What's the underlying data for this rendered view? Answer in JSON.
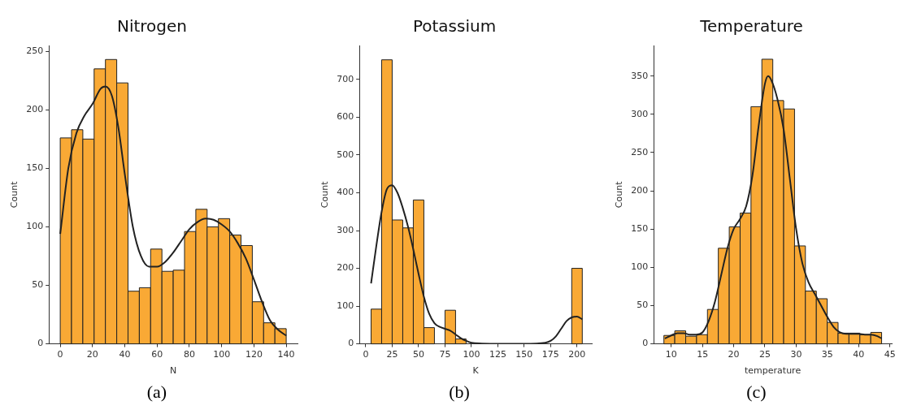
{
  "chart_data": [
    {
      "type": "histogram",
      "title": "Nitrogen",
      "xlabel": "N",
      "ylabel": "Count",
      "color": "#f9a935",
      "bins": [
        0,
        7,
        14,
        21,
        28,
        35,
        42,
        49,
        56,
        63,
        70,
        77,
        84,
        91,
        98,
        105,
        112,
        119,
        126,
        133,
        140
      ],
      "values": [
        176,
        183,
        175,
        235,
        243,
        223,
        45,
        48,
        81,
        62,
        63,
        96,
        115,
        100,
        107,
        93,
        84,
        36,
        18,
        13
      ],
      "series": [
        {
          "type": "line",
          "color": "#222222",
          "x": [
            0,
            5,
            10,
            15,
            20,
            25,
            28,
            32,
            36,
            40,
            45,
            50,
            55,
            60,
            65,
            70,
            75,
            80,
            85,
            90,
            95,
            100,
            105,
            110,
            115,
            120,
            125,
            130,
            135,
            140
          ],
          "values": [
            94,
            150,
            180,
            195,
            205,
            218,
            220,
            212,
            185,
            145,
            100,
            75,
            66,
            66,
            70,
            78,
            88,
            98,
            104,
            107,
            106,
            102,
            96,
            86,
            73,
            55,
            36,
            20,
            12,
            7
          ]
        }
      ],
      "xlim": [
        -7,
        147
      ],
      "ylim": [
        0,
        255
      ],
      "xticks": [
        0,
        20,
        40,
        60,
        80,
        100,
        120,
        140
      ],
      "yticks": [
        0,
        50,
        100,
        150,
        200,
        250
      ],
      "grid": false,
      "marker": "none",
      "annotations": [
        "(a)"
      ]
    },
    {
      "type": "histogram",
      "title": "Potassium",
      "xlabel": "K",
      "ylabel": "Count",
      "color": "#f9a935",
      "bins": [
        5,
        15,
        25,
        35,
        45,
        55,
        65,
        75,
        85,
        95,
        105,
        115,
        125,
        135,
        145,
        155,
        165,
        175,
        185,
        195,
        205
      ],
      "values": [
        92,
        752,
        328,
        307,
        381,
        43,
        0,
        89,
        13,
        0,
        0,
        0,
        0,
        0,
        0,
        0,
        0,
        0,
        0,
        200
      ],
      "series": [
        {
          "type": "line",
          "color": "#222222",
          "x": [
            5,
            10,
            15,
            20,
            25,
            30,
            35,
            40,
            45,
            50,
            55,
            60,
            65,
            70,
            75,
            80,
            85,
            90,
            95,
            100,
            110,
            125,
            150,
            170,
            175,
            180,
            185,
            190,
            195,
            200,
            205
          ],
          "values": [
            160,
            260,
            350,
            410,
            420,
            400,
            360,
            310,
            250,
            185,
            125,
            80,
            55,
            45,
            40,
            35,
            25,
            15,
            8,
            3,
            1,
            0,
            0,
            3,
            8,
            20,
            40,
            60,
            70,
            72,
            65
          ]
        }
      ],
      "xlim": [
        -6,
        214
      ],
      "ylim": [
        0,
        790
      ],
      "xticks": [
        0,
        25,
        50,
        75,
        100,
        125,
        150,
        175,
        200
      ],
      "yticks": [
        0,
        100,
        200,
        300,
        400,
        500,
        600,
        700
      ],
      "grid": false,
      "marker": "none",
      "annotations": [
        "(b)"
      ]
    },
    {
      "type": "histogram",
      "title": "Temperature",
      "xlabel": "temperature",
      "ylabel": "Count",
      "color": "#f9a935",
      "bins": [
        8.83,
        10.57,
        12.32,
        14.06,
        15.8,
        17.54,
        19.29,
        21.03,
        22.77,
        24.51,
        26.26,
        28.0,
        29.74,
        31.48,
        33.23,
        34.97,
        36.71,
        38.45,
        40.2,
        41.94,
        43.68
      ],
      "values": [
        11,
        17,
        10,
        12,
        45,
        125,
        153,
        171,
        310,
        372,
        318,
        307,
        128,
        69,
        59,
        28,
        14,
        14,
        12,
        15
      ],
      "series": [
        {
          "type": "line",
          "color": "#222222",
          "x": [
            9,
            10,
            11,
            12,
            13,
            14,
            15,
            16,
            17,
            18,
            19,
            20,
            21,
            22,
            23,
            24,
            25,
            25.5,
            26,
            27,
            28,
            29,
            30,
            31,
            32,
            33,
            34,
            35,
            36,
            37,
            38,
            39,
            40,
            41,
            42,
            43,
            43.7
          ],
          "values": [
            7,
            11,
            14,
            14,
            12,
            12,
            15,
            30,
            55,
            90,
            125,
            150,
            163,
            180,
            220,
            285,
            340,
            350,
            345,
            320,
            280,
            215,
            150,
            105,
            80,
            65,
            50,
            35,
            22,
            15,
            13,
            13,
            13,
            12,
            12,
            10,
            7
          ]
        }
      ],
      "xlim": [
        7.2,
        45.3
      ],
      "ylim": [
        0,
        390
      ],
      "xticks": [
        10,
        15,
        20,
        25,
        30,
        35,
        40,
        45
      ],
      "yticks": [
        0,
        50,
        100,
        150,
        200,
        250,
        300,
        350
      ],
      "grid": false,
      "marker": "none",
      "annotations": [
        "(c)"
      ]
    }
  ]
}
